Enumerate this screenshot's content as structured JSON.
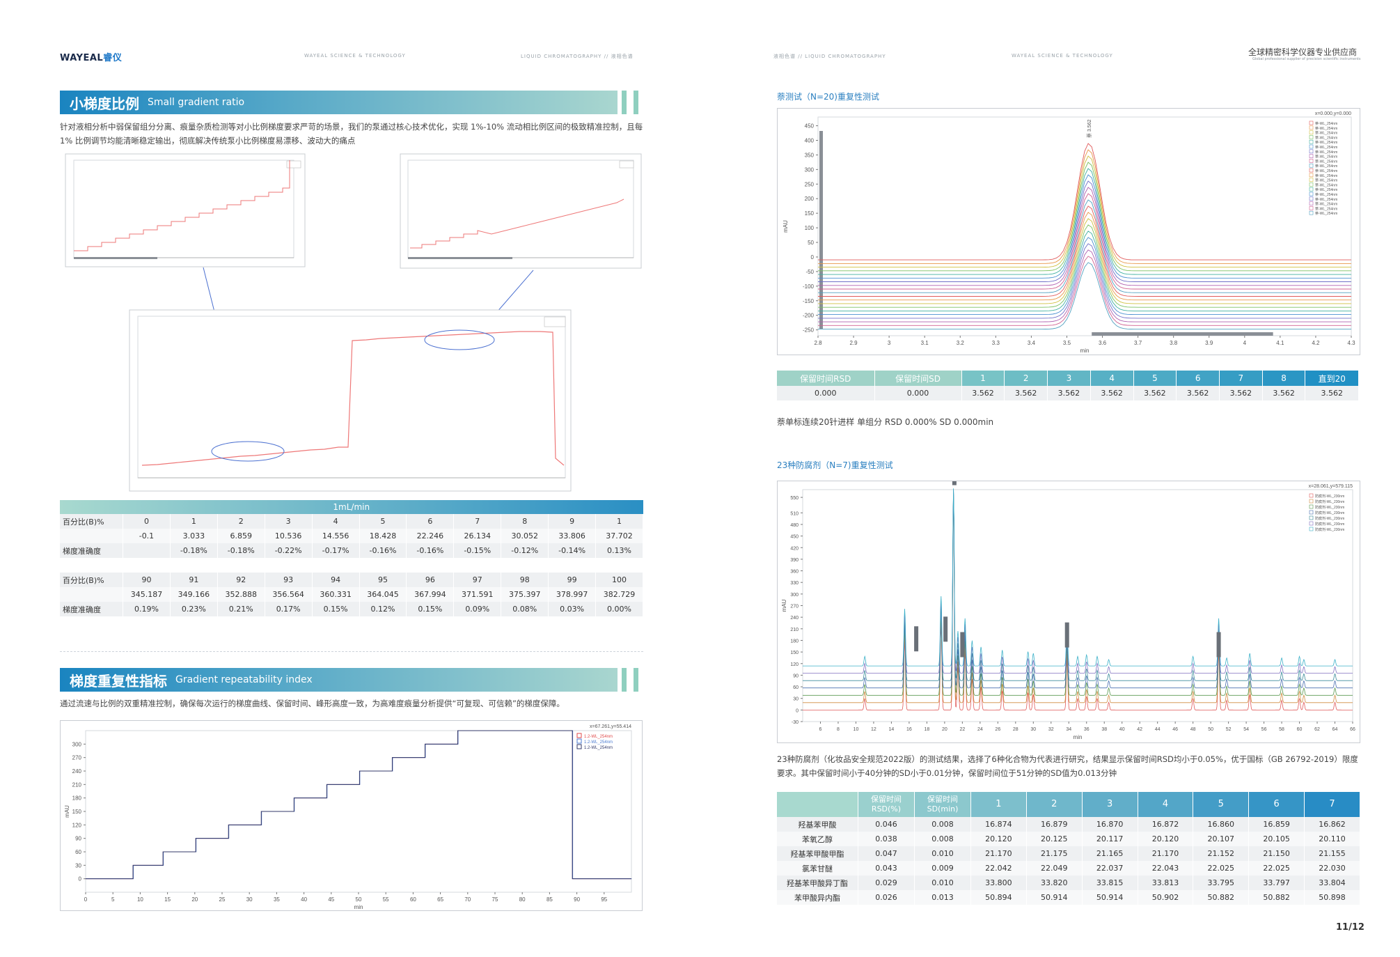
{
  "header": {
    "left_logo": "WAYEAL",
    "left_logo_cn": "睿仪",
    "left_mid": "WAYEAL SCIENCE & TECHNOLOGY",
    "left_right": "LIQUID CHROMATOGRAPHY  //  液相色谱",
    "right_left": "液相色谱  //  LIQUID CHROMATOGRAPHY",
    "right_mid": "WAYEAL SCIENCE & TECHNOLOGY",
    "right_title": "全球精密科学仪器专业供应商",
    "right_sub": "Global professional supplier of precision scientific instruments"
  },
  "section1": {
    "title_cn": "小梯度比例",
    "title_en": "Small gradient ratio",
    "text": "针对液相分析中弱保留组分分离、痕量杂质检测等对小比例梯度要求严苛的场景，我们的泵通过核心技术优化，实现 1%-10% 流动相比例区间的极致精准控制，且每 1% 比例调节均能清晰稳定输出，彻底解决传统泵小比例梯度易漂移、波动大的痛点"
  },
  "table1": {
    "header": "1mL/min",
    "rows": [
      [
        "百分比(B)%",
        "0",
        "1",
        "2",
        "3",
        "4",
        "5",
        "6",
        "7",
        "8",
        "9",
        "1"
      ],
      [
        "",
        "-0.1",
        "3.033",
        "6.859",
        "10.536",
        "14.556",
        "18.428",
        "22.246",
        "26.134",
        "30.052",
        "33.806",
        "37.702"
      ],
      [
        "梯度准确度",
        "",
        "-0.18%",
        "-0.18%",
        "-0.22%",
        "-0.17%",
        "-0.16%",
        "-0.16%",
        "-0.15%",
        "-0.12%",
        "-0.14%",
        "0.13%"
      ],
      [
        "",
        "",
        "",
        "",
        "",
        "",
        "",
        "",
        "",
        "",
        "",
        ""
      ],
      [
        "百分比(B)%",
        "90",
        "91",
        "92",
        "93",
        "94",
        "95",
        "96",
        "97",
        "98",
        "99",
        "100"
      ],
      [
        "",
        "345.187",
        "349.166",
        "352.888",
        "356.564",
        "360.331",
        "364.045",
        "367.994",
        "371.591",
        "375.397",
        "378.997",
        "382.729"
      ],
      [
        "梯度准确度",
        "0.19%",
        "0.23%",
        "0.21%",
        "0.17%",
        "0.15%",
        "0.12%",
        "0.15%",
        "0.09%",
        "0.08%",
        "0.03%",
        "0.00%"
      ]
    ]
  },
  "section2": {
    "title_cn": "梯度重复性指标",
    "title_en": "Gradient repeatability index",
    "text": "通过流速与比例的双重精准控制，确保每次运行的梯度曲线、保留时间、峰形高度一致，为高难度痕量分析提供“可复现、可信赖”的梯度保障。"
  },
  "chart_data": [
    {
      "type": "line",
      "title": "",
      "xlabel": "min",
      "ylabel": "mAU",
      "xlim": [
        0,
        100
      ],
      "ylim": [
        -30,
        330
      ],
      "xticks": [
        "0",
        "5",
        "10",
        "15",
        "20",
        "25",
        "30",
        "35",
        "40",
        "45",
        "50",
        "55",
        "60",
        "65",
        "70",
        "75",
        "80",
        "85",
        "90",
        "95"
      ],
      "yticks": [
        "0",
        "30",
        "60",
        "90",
        "120",
        "150",
        "180",
        "210",
        "240",
        "270",
        "300"
      ],
      "cursor": "x=67.261,y=55.414",
      "series": [
        {
          "name": "1.2-WL_254nm",
          "color": "#e04a4a"
        },
        {
          "name": "1.2-WL_254nm",
          "color": "#4a7ad0"
        },
        {
          "name": "1.2-WL_254nm",
          "color": "#333a6a"
        }
      ],
      "steps": [
        [
          0,
          0
        ],
        [
          8.7,
          30
        ],
        [
          14.2,
          60
        ],
        [
          20.2,
          90
        ],
        [
          26.2,
          120
        ],
        [
          32.2,
          150
        ],
        [
          38.2,
          180
        ],
        [
          44.2,
          210
        ],
        [
          50.2,
          240
        ],
        [
          56.2,
          270
        ],
        [
          62.2,
          300
        ],
        [
          68.2,
          330
        ],
        [
          88.3,
          330
        ],
        [
          89.2,
          0
        ],
        [
          100,
          0
        ]
      ]
    },
    {
      "type": "line",
      "title": "萘测试（N=20)重复性测试",
      "xlabel": "min",
      "ylabel": "mAU",
      "xlim": [
        2.8,
        4.3
      ],
      "ylim": [
        -270,
        480
      ],
      "xticks": [
        "2.8",
        "2.9",
        "3",
        "3.1",
        "3.2",
        "3.3",
        "3.4",
        "3.5",
        "3.6",
        "3.7",
        "3.8",
        "3.9",
        "4",
        "4.1",
        "4.2",
        "4.3"
      ],
      "yticks": [
        "450",
        "400",
        "350",
        "300",
        "250",
        "200",
        "150",
        "100",
        "50",
        "0",
        "-50",
        "-100",
        "-150",
        "-200",
        "-250"
      ],
      "cursor": "x=0.000,y=0.000",
      "peak_label": "萘 3.562",
      "peak_rt": 3.562,
      "n_traces": 20,
      "legend_item": "萘-WL_254nm"
    },
    {
      "type": "line",
      "title": "23种防腐剂（N=7)重复性测试",
      "xlabel": "min",
      "ylabel": "mAU",
      "xlim": [
        4,
        66
      ],
      "ylim": [
        -30,
        570
      ],
      "xticks": [
        "6",
        "8",
        "10",
        "12",
        "14",
        "16",
        "18",
        "20",
        "22",
        "24",
        "26",
        "28",
        "30",
        "32",
        "34",
        "36",
        "38",
        "40",
        "42",
        "44",
        "46",
        "48",
        "50",
        "52",
        "54",
        "56",
        "58",
        "60",
        "62",
        "64",
        "66"
      ],
      "yticks": [
        "550",
        "510",
        "480",
        "450",
        "420",
        "390",
        "360",
        "330",
        "300",
        "270",
        "240",
        "210",
        "180",
        "150",
        "120",
        "90",
        "60",
        "30",
        "0",
        "-30"
      ],
      "cursor": "x=28.061,y=579.115",
      "n_traces": 7,
      "legend_item": "防腐剂-WL_230nm"
    }
  ],
  "naph_table": {
    "headers": [
      "保留时间RSD",
      "保留时间SD",
      "1",
      "2",
      "3",
      "4",
      "5",
      "6",
      "7",
      "8",
      "直到20"
    ],
    "row": [
      "0.000",
      "0.000",
      "3.562",
      "3.562",
      "3.562",
      "3.562",
      "3.562",
      "3.562",
      "3.562",
      "3.562",
      "3.562"
    ]
  },
  "naph_note": "萘单标连续20针进样 单组分 RSD 0.000% SD 0.000min",
  "pres": {
    "subtitle": "23种防腐剂（N=7)重复性测试",
    "text": "23种防腐剂（化妆品安全规范2022版）的测试结果，选择了6种化合物为代表进行研究，结果显示保留时间RSD均小于0.05%，优于国标（GB 26792-2019）限度要求。其中保留时间小于40分钟的SD小于0.01分钟，保留时间位于51分钟的SD值为0.013分钟",
    "headers": [
      "",
      "保留时间RSD(%)",
      "保留时间SD(min)",
      "1",
      "2",
      "3",
      "4",
      "5",
      "6",
      "7"
    ],
    "rows": [
      [
        "羟基苯甲酸",
        "0.046",
        "0.008",
        "16.874",
        "16.879",
        "16.870",
        "16.872",
        "16.860",
        "16.859",
        "16.862"
      ],
      [
        "苯氧乙醇",
        "0.038",
        "0.008",
        "20.120",
        "20.125",
        "20.117",
        "20.120",
        "20.107",
        "20.105",
        "20.110"
      ],
      [
        "羟基苯甲酸甲酯",
        "0.047",
        "0.010",
        "21.170",
        "21.175",
        "21.165",
        "21.170",
        "21.152",
        "21.150",
        "21.155"
      ],
      [
        "氯苯甘醚",
        "0.043",
        "0.009",
        "22.042",
        "22.049",
        "22.037",
        "22.043",
        "22.025",
        "22.025",
        "22.030"
      ],
      [
        "羟基苯甲酸异丁酯",
        "0.029",
        "0.010",
        "33.800",
        "33.820",
        "33.815",
        "33.813",
        "33.795",
        "33.797",
        "33.804"
      ],
      [
        "苯甲酸异内酯",
        "0.026",
        "0.013",
        "50.894",
        "50.914",
        "50.914",
        "50.902",
        "50.882",
        "50.882",
        "50.898"
      ]
    ]
  },
  "page_number": "11/12",
  "colors": {
    "accent": "#1a84c0",
    "table_head_light": "#a8d9cf",
    "table_head_dark": "#2a8fc4",
    "row_alt": "#eef0f2"
  }
}
